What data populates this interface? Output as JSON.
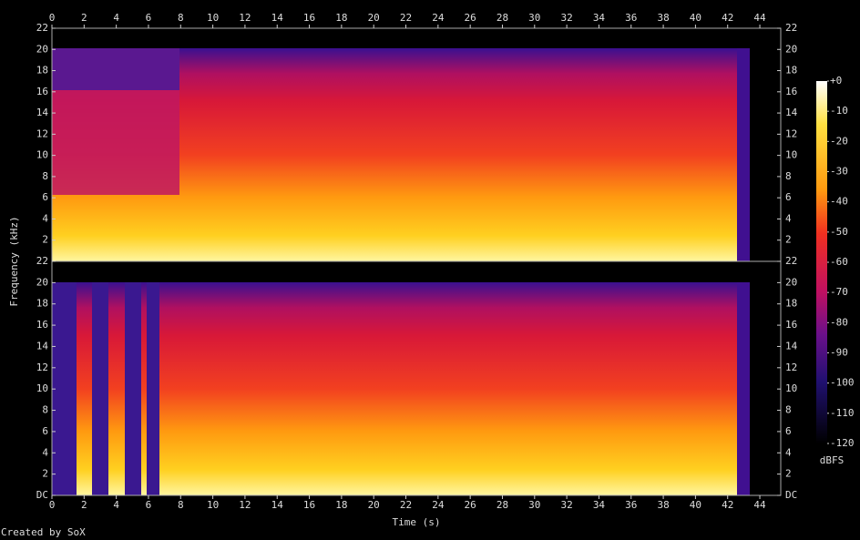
{
  "chart_data": {
    "type": "spectrogram",
    "xlabel": "Time (s)",
    "ylabel": "Frequency (kHz)",
    "xlim": [
      0,
      45.3
    ],
    "xticks": [
      0,
      2,
      4,
      6,
      8,
      10,
      12,
      14,
      16,
      18,
      20,
      22,
      24,
      26,
      28,
      30,
      32,
      34,
      36,
      38,
      40,
      42,
      44
    ],
    "channels": [
      {
        "ylim": [
          0,
          22
        ],
        "yticks": [
          2,
          4,
          6,
          8,
          10,
          12,
          14,
          16,
          18,
          20,
          22
        ]
      },
      {
        "ylim": [
          0,
          22
        ],
        "yticks": [
          {
            "value": 0,
            "label": "DC"
          },
          2,
          4,
          6,
          8,
          10,
          12,
          14,
          16,
          18,
          20,
          22
        ]
      }
    ],
    "colorbar": {
      "label": "dBFS",
      "lim": [
        -120,
        0
      ],
      "ticks": [
        {
          "value": 0,
          "label": "+0"
        },
        -10,
        -20,
        -30,
        -40,
        -50,
        -60,
        -70,
        -80,
        -90,
        -100,
        -110,
        -120
      ]
    },
    "credit": "Created by SoX"
  }
}
